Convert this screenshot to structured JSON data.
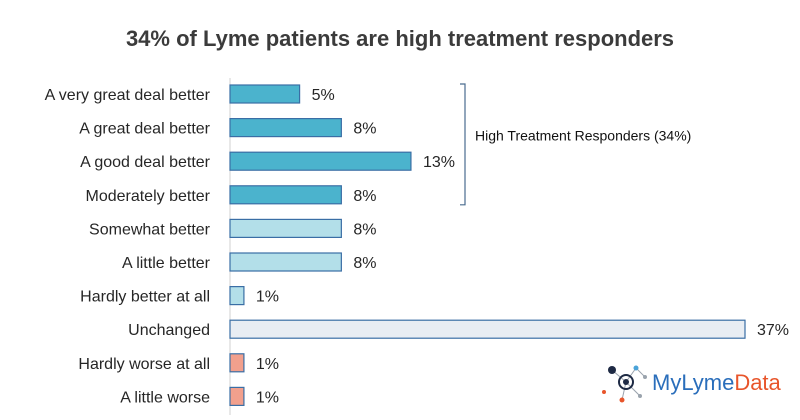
{
  "chart_data": {
    "type": "bar",
    "orientation": "horizontal",
    "title": "34% of Lyme patients are high treatment responders",
    "categories": [
      "A very great deal better",
      "A great deal better",
      "A good deal better",
      "Moderately better",
      "Somewhat better",
      "A little better",
      "Hardly better at all",
      "Unchanged",
      "Hardly worse at all",
      "A little worse"
    ],
    "values": [
      5,
      8,
      13,
      8,
      8,
      8,
      1,
      37,
      1,
      1
    ],
    "value_labels": [
      "5%",
      "8%",
      "13%",
      "8%",
      "8%",
      "8%",
      "1%",
      "37%",
      "1%",
      "1%"
    ],
    "bar_colors": [
      "#4bb3cd",
      "#4bb3cd",
      "#4bb3cd",
      "#4bb3cd",
      "#b3dfe9",
      "#b3dfe9",
      "#b3dfe9",
      "#e8edf3",
      "#f2a08d",
      "#f2a08d"
    ],
    "bar_border_color": "#3a6ea5",
    "xlim": [
      0,
      37
    ],
    "grid": false,
    "annotation": {
      "text": "High Treatment Responders (34%)",
      "spans_categories": [
        0,
        3
      ]
    }
  },
  "logo": {
    "text_part1": "MyLyme",
    "text_part2": "Data",
    "color1": "#2a6ebb",
    "color2": "#e8552b"
  }
}
